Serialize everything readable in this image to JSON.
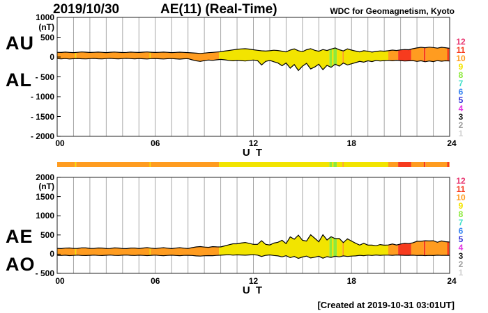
{
  "header": {
    "date": "2019/10/30",
    "title": "AE(11) (Real-Time)",
    "org": "WDC for Geomagnetism, Kyoto",
    "created": "[Created at 2019-10-31 03:01UT]"
  },
  "legend": {
    "counts": [
      12,
      11,
      10,
      9,
      8,
      7,
      6,
      5,
      4,
      3,
      2,
      1
    ],
    "colors": {
      "12": "#E8336E",
      "11": "#F73B1E",
      "10": "#FF9C20",
      "9": "#F2E400",
      "8": "#8DE93D",
      "7": "#40DFC8",
      "6": "#3A87F2",
      "5": "#3333D8",
      "4": "#E135E1",
      "3": "#1A1A1A",
      "2": "#9C9C9C",
      "1": "#D0D0D0"
    }
  },
  "station_segments": [
    {
      "t0": 0.0,
      "t1": 1.1,
      "n": 10
    },
    {
      "t0": 1.1,
      "t1": 1.16,
      "n": 9
    },
    {
      "t0": 1.16,
      "t1": 5.65,
      "n": 10
    },
    {
      "t0": 5.65,
      "t1": 5.71,
      "n": 9
    },
    {
      "t0": 5.71,
      "t1": 9.9,
      "n": 10
    },
    {
      "t0": 9.9,
      "t1": 16.65,
      "n": 9
    },
    {
      "t0": 16.65,
      "t1": 16.8,
      "n": 8
    },
    {
      "t0": 16.8,
      "t1": 16.9,
      "n": 9
    },
    {
      "t0": 16.9,
      "t1": 17.1,
      "n": 8
    },
    {
      "t0": 17.1,
      "t1": 17.45,
      "n": 9
    },
    {
      "t0": 17.45,
      "t1": 17.52,
      "n": 10
    },
    {
      "t0": 17.52,
      "t1": 20.25,
      "n": 9
    },
    {
      "t0": 20.25,
      "t1": 20.85,
      "n": 10
    },
    {
      "t0": 20.85,
      "t1": 21.65,
      "n": 11
    },
    {
      "t0": 21.65,
      "t1": 22.42,
      "n": 10
    },
    {
      "t0": 22.42,
      "t1": 22.52,
      "n": 11
    },
    {
      "t0": 22.52,
      "t1": 23.85,
      "n": 10
    },
    {
      "t0": 23.85,
      "t1": 23.97,
      "n": 11
    },
    {
      "t0": 23.97,
      "t1": 24.0,
      "n": 10
    }
  ],
  "chart_data": [
    {
      "type": "area",
      "title": "AU / AL indices, 2019/10/30, AE(11) Real-Time",
      "unit": "(nT)",
      "xlabel": "U T",
      "xlim": [
        0,
        24
      ],
      "ylim": [
        -2000,
        1000
      ],
      "grid": "vertical-hourly",
      "legend_position": "right",
      "yticks": [
        {
          "v": 1000,
          "label": "1000"
        },
        {
          "v": 500,
          "label": "500"
        },
        {
          "v": 0,
          "label": "0"
        },
        {
          "v": -500,
          "label": "- 500"
        },
        {
          "v": -1000,
          "label": "- 1000"
        },
        {
          "v": -1500,
          "label": "- 1500"
        },
        {
          "v": -2000,
          "label": "- 2000"
        }
      ],
      "xticks": [
        {
          "t": 0,
          "label": "00"
        },
        {
          "t": 6,
          "label": "06"
        },
        {
          "t": 12,
          "label": "12"
        },
        {
          "t": 18,
          "label": "18"
        },
        {
          "t": 24,
          "label": "24"
        }
      ],
      "x_start_hours": 0,
      "x_step_hours": 0.25,
      "series": [
        {
          "name": "AU",
          "values": [
            120,
            115,
            125,
            118,
            112,
            120,
            128,
            122,
            116,
            120,
            125,
            119,
            113,
            121,
            127,
            120,
            114,
            118,
            124,
            120,
            115,
            122,
            128,
            121,
            116,
            119,
            125,
            120,
            113,
            117,
            123,
            118,
            112,
            105,
            98,
            92,
            100,
            110,
            118,
            126,
            134,
            150,
            165,
            180,
            195,
            205,
            210,
            200,
            185,
            170,
            158,
            150,
            160,
            172,
            165,
            148,
            130,
            175,
            205,
            160,
            135,
            185,
            210,
            170,
            145,
            190,
            165,
            200,
            230,
            185,
            155,
            205,
            175,
            150,
            130,
            160,
            145,
            125,
            140,
            155,
            148,
            160,
            175,
            165,
            180,
            190,
            185,
            210,
            230,
            245,
            235,
            250,
            240,
            225,
            245,
            235,
            220
          ]
        },
        {
          "name": "AL",
          "values": [
            -40,
            -45,
            -38,
            -50,
            -42,
            -36,
            -44,
            -48,
            -40,
            -35,
            -43,
            -47,
            -39,
            -34,
            -42,
            -46,
            -38,
            -33,
            -41,
            -45,
            -37,
            -43,
            -49,
            -40,
            -36,
            -44,
            -50,
            -42,
            -38,
            -46,
            -52,
            -44,
            -40,
            -70,
            -95,
            -110,
            -90,
            -75,
            -85,
            -70,
            -60,
            -70,
            -85,
            -95,
            -80,
            -90,
            -100,
            -85,
            -75,
            -90,
            -200,
            -110,
            -85,
            -120,
            -150,
            -220,
            -150,
            -280,
            -190,
            -340,
            -230,
            -160,
            -300,
            -250,
            -180,
            -320,
            -210,
            -260,
            -180,
            -230,
            -150,
            -200,
            -170,
            -140,
            -110,
            -130,
            -95,
            -115,
            -85,
            -100,
            -90,
            -85,
            -95,
            -80,
            -90,
            -100,
            -95,
            -90,
            -110,
            -95,
            -120,
            -100,
            -115,
            -90,
            -105,
            -95,
            -100
          ]
        }
      ]
    },
    {
      "type": "area",
      "title": "AE / AO indices, 2019/10/30, AE(11) Real-Time",
      "unit": "(nT)",
      "xlabel": "U T",
      "xlim": [
        0,
        24
      ],
      "ylim": [
        -500,
        2000
      ],
      "grid": "vertical-hourly",
      "legend_position": "right",
      "yticks": [
        {
          "v": 2000,
          "label": "2000"
        },
        {
          "v": 1500,
          "label": "1500"
        },
        {
          "v": 1000,
          "label": "1000"
        },
        {
          "v": 500,
          "label": "500"
        },
        {
          "v": 0,
          "label": "0"
        },
        {
          "v": -500,
          "label": "- 500"
        }
      ],
      "xticks": [
        {
          "t": 0,
          "label": "00"
        },
        {
          "t": 6,
          "label": "06"
        },
        {
          "t": 12,
          "label": "12"
        },
        {
          "t": 18,
          "label": "18"
        },
        {
          "t": 24,
          "label": "24"
        }
      ],
      "x_start_hours": 0,
      "x_step_hours": 0.25,
      "series": [
        {
          "name": "AE",
          "values": [
            150,
            145,
            158,
            162,
            148,
            150,
            165,
            163,
            150,
            148,
            162,
            160,
            146,
            149,
            163,
            160,
            146,
            145,
            159,
            159,
            146,
            159,
            170,
            155,
            146,
            157,
            168,
            156,
            145,
            157,
            168,
            156,
            146,
            170,
            188,
            198,
            185,
            178,
            196,
            190,
            188,
            215,
            245,
            270,
            270,
            290,
            305,
            280,
            255,
            255,
            350,
            255,
            240,
            288,
            310,
            360,
            275,
            450,
            390,
            495,
            360,
            340,
            505,
            415,
            320,
            505,
            370,
            455,
            405,
            410,
            300,
            400,
            340,
            285,
            235,
            285,
            235,
            235,
            220,
            250,
            233,
            240,
            265,
            240,
            265,
            285,
            275,
            295,
            335,
            335,
            350,
            345,
            350,
            310,
            345,
            325,
            315
          ]
        },
        {
          "name": "AO",
          "values": [
            -30,
            -35,
            -28,
            -38,
            -32,
            -26,
            -34,
            -36,
            -30,
            -25,
            -33,
            -36,
            -29,
            -24,
            -32,
            -35,
            -28,
            -23,
            -31,
            -34,
            -27,
            -33,
            -38,
            -30,
            -26,
            -34,
            -39,
            -32,
            -28,
            -35,
            -40,
            -33,
            -30,
            -35,
            -45,
            -50,
            -42,
            -38,
            -40,
            -32,
            -28,
            -20,
            -15,
            -25,
            -18,
            -22,
            -28,
            -20,
            -15,
            -25,
            -60,
            -30,
            -20,
            -35,
            -45,
            -70,
            -40,
            -90,
            -60,
            -110,
            -75,
            -50,
            -100,
            -80,
            -55,
            -105,
            -65,
            -85,
            -55,
            -70,
            -45,
            -60,
            -50,
            -45,
            -30,
            -40,
            -25,
            -35,
            -22,
            -30,
            -26,
            -25,
            -30,
            -22,
            -28,
            -32,
            -30,
            -28,
            -35,
            -30,
            -38,
            -32,
            -36,
            -28,
            -33,
            -30,
            -32
          ]
        }
      ]
    }
  ]
}
